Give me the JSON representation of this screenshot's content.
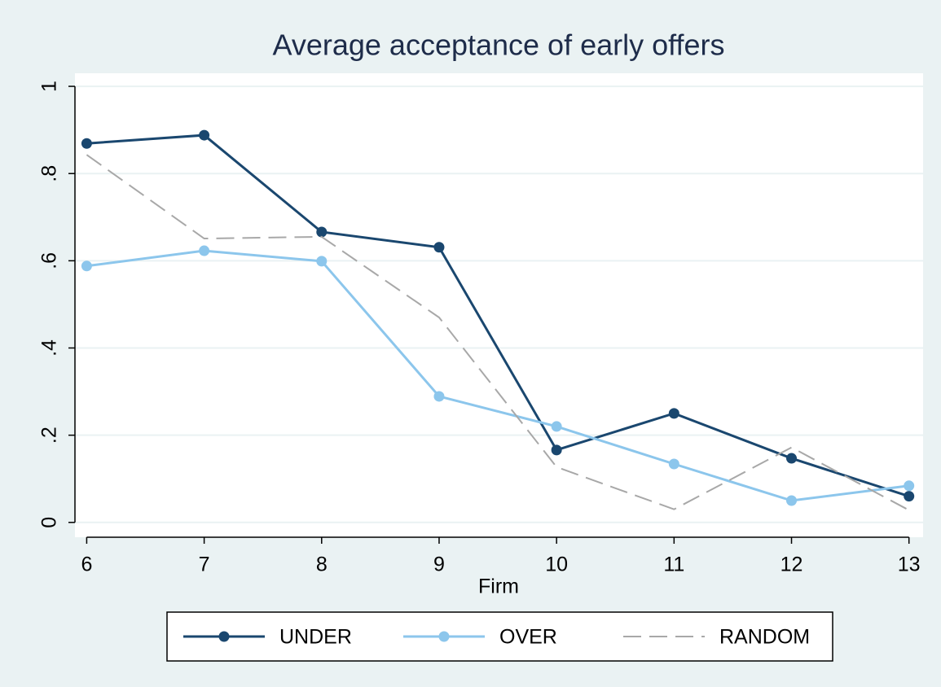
{
  "chart_data": {
    "type": "line",
    "title": "Average acceptance of early offers",
    "x_label": "Firm",
    "x": [
      6,
      7,
      8,
      9,
      10,
      11,
      12,
      13
    ],
    "xlim": [
      5.9,
      13.12
    ],
    "xticks": [
      6,
      7,
      8,
      9,
      10,
      11,
      12,
      13
    ],
    "ylim": [
      -0.034,
      1.03
    ],
    "yticks": [
      0,
      {
        "value": 0.2,
        "label": ".2"
      },
      {
        "value": 0.4,
        "label": ".4"
      },
      {
        "value": 0.6,
        "label": ".6"
      },
      {
        "value": 0.8,
        "label": ".8"
      },
      1
    ],
    "grid": true,
    "legend": "bottom",
    "series": [
      {
        "name": "UNDER",
        "color": "#1a476f",
        "marker": true,
        "dashed": false,
        "values": [
          0.869,
          0.888,
          0.666,
          0.631,
          0.166,
          0.25,
          0.147,
          0.06
        ]
      },
      {
        "name": "OVER",
        "color": "#8cc6ec",
        "marker": true,
        "dashed": false,
        "values": [
          0.588,
          0.623,
          0.599,
          0.289,
          0.22,
          0.134,
          0.05,
          0.084
        ]
      },
      {
        "name": "RANDOM",
        "color": "#a8a8a8",
        "marker": false,
        "dashed": true,
        "values": [
          0.843,
          0.651,
          0.655,
          0.47,
          0.127,
          0.03,
          0.172,
          0.028
        ]
      }
    ]
  }
}
